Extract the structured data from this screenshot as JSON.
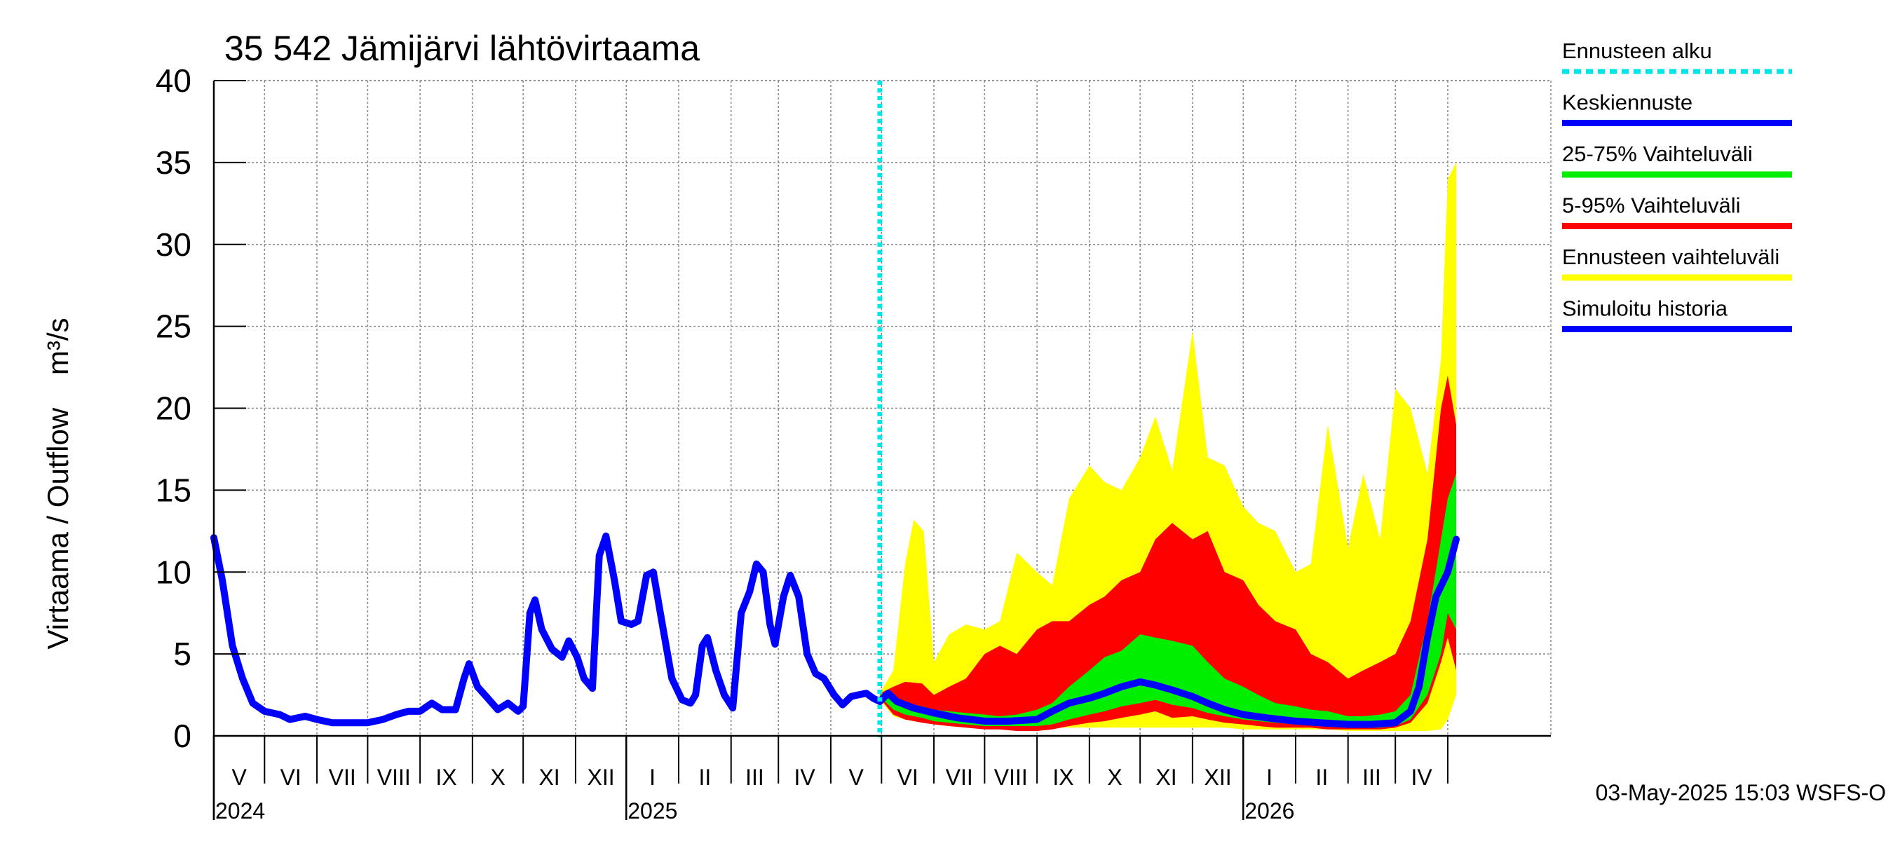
{
  "chart_data": {
    "type": "area",
    "title": "35 542 Jämijärvi lähtövirtaama",
    "ylabel": "Virtaama / Outflow    m³/s",
    "ylim": [
      0,
      40
    ],
    "yticks": [
      0,
      5,
      10,
      15,
      20,
      25,
      30,
      35,
      40
    ],
    "grid": true,
    "legend_position": "right",
    "x_range": [
      "2024-04-01",
      "2026-05-31"
    ],
    "months": [
      {
        "label": "V",
        "start": "2024-04-01"
      },
      {
        "label": "VI",
        "start": "2024-05-01"
      },
      {
        "label": "VII",
        "start": "2024-06-01"
      },
      {
        "label": "VIII",
        "start": "2024-07-01"
      },
      {
        "label": "IX",
        "start": "2024-08-01"
      },
      {
        "label": "X",
        "start": "2024-09-01"
      },
      {
        "label": "XI",
        "start": "2024-10-01"
      },
      {
        "label": "XII",
        "start": "2024-11-01"
      },
      {
        "label": "I",
        "start": "2024-12-01"
      },
      {
        "label": "II",
        "start": "2025-01-01"
      },
      {
        "label": "III",
        "start": "2025-02-01"
      },
      {
        "label": "IV",
        "start": "2025-03-01"
      },
      {
        "label": "V",
        "start": "2025-04-01"
      },
      {
        "label": "VI",
        "start": "2025-05-01"
      },
      {
        "label": "VII",
        "start": "2025-06-01"
      },
      {
        "label": "VIII",
        "start": "2025-07-01"
      },
      {
        "label": "IX",
        "start": "2025-08-01"
      },
      {
        "label": "X",
        "start": "2025-09-01"
      },
      {
        "label": "XI",
        "start": "2025-10-01"
      },
      {
        "label": "XII",
        "start": "2025-11-01"
      },
      {
        "label": "I",
        "start": "2025-12-01"
      },
      {
        "label": "II",
        "start": "2026-01-01"
      },
      {
        "label": "III",
        "start": "2026-02-01"
      },
      {
        "label": "IV",
        "start": "2026-03-01"
      },
      {
        "label": "",
        "start": "2026-04-01"
      }
    ],
    "years": [
      {
        "label": "2024",
        "at": "2024-04-01"
      },
      {
        "label": "2025",
        "at": "2024-12-01"
      },
      {
        "label": "2026",
        "at": "2025-12-01"
      }
    ],
    "forecast_start": "2025-04-30",
    "series": [
      {
        "name": "Simuloitu historia",
        "color": "#0000ff",
        "points": [
          [
            "2024-04-01",
            12.1
          ],
          [
            "2024-04-06",
            9.5
          ],
          [
            "2024-04-12",
            5.5
          ],
          [
            "2024-04-18",
            3.5
          ],
          [
            "2024-04-24",
            2.0
          ],
          [
            "2024-05-01",
            1.5
          ],
          [
            "2024-05-10",
            1.3
          ],
          [
            "2024-05-16",
            1.0
          ],
          [
            "2024-05-25",
            1.2
          ],
          [
            "2024-06-01",
            1.0
          ],
          [
            "2024-06-10",
            0.8
          ],
          [
            "2024-06-20",
            0.8
          ],
          [
            "2024-07-01",
            0.8
          ],
          [
            "2024-07-10",
            1.0
          ],
          [
            "2024-07-18",
            1.3
          ],
          [
            "2024-07-25",
            1.5
          ],
          [
            "2024-08-01",
            1.5
          ],
          [
            "2024-08-08",
            2.0
          ],
          [
            "2024-08-14",
            1.6
          ],
          [
            "2024-08-22",
            1.6
          ],
          [
            "2024-08-27",
            3.5
          ],
          [
            "2024-08-30",
            4.4
          ],
          [
            "2024-09-04",
            3.0
          ],
          [
            "2024-09-10",
            2.3
          ],
          [
            "2024-09-16",
            1.6
          ],
          [
            "2024-09-22",
            2.0
          ],
          [
            "2024-09-28",
            1.5
          ],
          [
            "2024-10-01",
            1.8
          ],
          [
            "2024-10-05",
            7.5
          ],
          [
            "2024-10-08",
            8.3
          ],
          [
            "2024-10-12",
            6.5
          ],
          [
            "2024-10-18",
            5.3
          ],
          [
            "2024-10-24",
            4.8
          ],
          [
            "2024-10-28",
            5.8
          ],
          [
            "2024-11-02",
            4.8
          ],
          [
            "2024-11-06",
            3.5
          ],
          [
            "2024-11-11",
            2.9
          ],
          [
            "2024-11-15",
            11.0
          ],
          [
            "2024-11-19",
            12.2
          ],
          [
            "2024-11-24",
            9.5
          ],
          [
            "2024-11-28",
            7.0
          ],
          [
            "2024-12-04",
            6.8
          ],
          [
            "2024-12-08",
            7.0
          ],
          [
            "2024-12-13",
            9.8
          ],
          [
            "2024-12-17",
            10.0
          ],
          [
            "2024-12-22",
            7.0
          ],
          [
            "2024-12-28",
            3.5
          ],
          [
            "2025-01-03",
            2.2
          ],
          [
            "2025-01-08",
            2.0
          ],
          [
            "2025-01-11",
            2.5
          ],
          [
            "2025-01-15",
            5.5
          ],
          [
            "2025-01-18",
            6.0
          ],
          [
            "2025-01-23",
            4.0
          ],
          [
            "2025-01-28",
            2.5
          ],
          [
            "2025-02-02",
            1.7
          ],
          [
            "2025-02-07",
            7.5
          ],
          [
            "2025-02-12",
            8.8
          ],
          [
            "2025-02-16",
            10.5
          ],
          [
            "2025-02-20",
            10.0
          ],
          [
            "2025-02-24",
            6.8
          ],
          [
            "2025-02-27",
            5.6
          ],
          [
            "2025-03-04",
            8.5
          ],
          [
            "2025-03-08",
            9.8
          ],
          [
            "2025-03-13",
            8.5
          ],
          [
            "2025-03-18",
            5.0
          ],
          [
            "2025-03-23",
            3.8
          ],
          [
            "2025-03-28",
            3.5
          ],
          [
            "2025-04-03",
            2.5
          ],
          [
            "2025-04-08",
            1.9
          ],
          [
            "2025-04-13",
            2.4
          ],
          [
            "2025-04-17",
            2.5
          ],
          [
            "2025-04-22",
            2.6
          ],
          [
            "2025-04-26",
            2.3
          ],
          [
            "2025-04-30",
            2.1
          ]
        ]
      },
      {
        "name": "Ennusteen vaihteluväli",
        "color": "#ffff00",
        "dates": [
          "2025-04-30",
          "2025-05-08",
          "2025-05-15",
          "2025-05-20",
          "2025-05-26",
          "2025-06-01",
          "2025-06-10",
          "2025-06-20",
          "2025-07-01",
          "2025-07-10",
          "2025-07-20",
          "2025-08-01",
          "2025-08-10",
          "2025-08-20",
          "2025-09-01",
          "2025-09-10",
          "2025-09-20",
          "2025-10-01",
          "2025-10-10",
          "2025-10-20",
          "2025-11-01",
          "2025-11-10",
          "2025-11-20",
          "2025-12-01",
          "2025-12-10",
          "2025-12-20",
          "2026-01-01",
          "2026-01-10",
          "2026-01-20",
          "2026-02-01",
          "2026-02-10",
          "2026-02-20",
          "2026-03-01",
          "2026-03-10",
          "2026-03-20",
          "2026-03-28",
          "2026-04-01",
          "2026-04-06"
        ],
        "low": [
          2.2,
          1.2,
          1.0,
          0.9,
          0.8,
          0.7,
          0.6,
          0.5,
          0.5,
          0.5,
          0.5,
          0.5,
          0.5,
          0.5,
          0.5,
          0.5,
          0.5,
          0.5,
          0.5,
          0.5,
          0.5,
          0.5,
          0.5,
          0.4,
          0.4,
          0.4,
          0.4,
          0.4,
          0.4,
          0.3,
          0.3,
          0.3,
          0.3,
          0.3,
          0.3,
          0.4,
          1.0,
          2.5
        ],
        "high": [
          2.6,
          4.0,
          10.5,
          13.2,
          12.5,
          4.5,
          6.2,
          6.8,
          6.5,
          7.0,
          11.2,
          10.0,
          9.2,
          14.5,
          16.5,
          15.5,
          15.0,
          17.0,
          19.5,
          16.2,
          24.7,
          17.0,
          16.5,
          14.0,
          13.0,
          12.5,
          10.0,
          10.5,
          19.0,
          11.5,
          16.0,
          12.0,
          21.2,
          20.0,
          16.0,
          23.0,
          34.0,
          35.0
        ]
      },
      {
        "name": "5-95% Vaihteluväli",
        "color": "#ff0000",
        "dates": [
          "2025-04-30",
          "2025-05-08",
          "2025-05-15",
          "2025-05-25",
          "2025-06-01",
          "2025-06-10",
          "2025-06-20",
          "2025-07-01",
          "2025-07-10",
          "2025-07-20",
          "2025-08-01",
          "2025-08-10",
          "2025-08-20",
          "2025-09-01",
          "2025-09-10",
          "2025-09-20",
          "2025-10-01",
          "2025-10-10",
          "2025-10-20",
          "2025-11-01",
          "2025-11-10",
          "2025-11-20",
          "2025-12-01",
          "2025-12-10",
          "2025-12-20",
          "2026-01-01",
          "2026-01-10",
          "2026-01-20",
          "2026-02-01",
          "2026-02-10",
          "2026-02-20",
          "2026-03-01",
          "2026-03-10",
          "2026-03-20",
          "2026-03-28",
          "2026-04-01",
          "2026-04-06"
        ],
        "low": [
          2.3,
          1.3,
          1.0,
          0.8,
          0.7,
          0.6,
          0.5,
          0.4,
          0.4,
          0.3,
          0.3,
          0.4,
          0.6,
          0.8,
          0.9,
          1.1,
          1.3,
          1.5,
          1.1,
          1.2,
          1.0,
          0.8,
          0.7,
          0.6,
          0.5,
          0.5,
          0.5,
          0.4,
          0.4,
          0.4,
          0.4,
          0.5,
          0.8,
          2.0,
          4.5,
          6.0,
          4.0
        ],
        "high": [
          2.6,
          3.0,
          3.3,
          3.2,
          2.5,
          3.0,
          3.5,
          5.0,
          5.5,
          5.0,
          6.5,
          7.0,
          7.0,
          8.0,
          8.5,
          9.5,
          10.0,
          12.0,
          13.0,
          12.0,
          12.5,
          10.0,
          9.5,
          8.0,
          7.0,
          6.5,
          5.0,
          4.5,
          3.5,
          4.0,
          4.5,
          5.0,
          7.0,
          12.0,
          20.0,
          22.0,
          19.0
        ]
      },
      {
        "name": "25-75% Vaihteluväli",
        "color": "#00ee00",
        "dates": [
          "2025-04-30",
          "2025-05-08",
          "2025-05-15",
          "2025-05-25",
          "2025-06-01",
          "2025-06-10",
          "2025-06-20",
          "2025-07-01",
          "2025-07-10",
          "2025-07-20",
          "2025-08-01",
          "2025-08-10",
          "2025-08-20",
          "2025-09-01",
          "2025-09-10",
          "2025-09-20",
          "2025-10-01",
          "2025-10-10",
          "2025-10-20",
          "2025-11-01",
          "2025-11-10",
          "2025-11-20",
          "2025-12-01",
          "2025-12-10",
          "2025-12-20",
          "2026-01-01",
          "2026-01-10",
          "2026-01-20",
          "2026-02-01",
          "2026-02-10",
          "2026-02-20",
          "2026-03-01",
          "2026-03-10",
          "2026-03-20",
          "2026-03-28",
          "2026-04-01",
          "2026-04-06"
        ],
        "low": [
          2.4,
          1.6,
          1.3,
          1.1,
          0.9,
          0.8,
          0.7,
          0.6,
          0.6,
          0.6,
          0.6,
          0.7,
          1.0,
          1.3,
          1.5,
          1.8,
          2.0,
          2.2,
          1.9,
          1.7,
          1.4,
          1.2,
          1.0,
          0.9,
          0.8,
          0.7,
          0.7,
          0.6,
          0.5,
          0.5,
          0.5,
          0.6,
          1.0,
          2.5,
          5.0,
          7.5,
          6.5
        ],
        "high": [
          2.6,
          2.2,
          2.0,
          1.8,
          1.6,
          1.5,
          1.4,
          1.3,
          1.2,
          1.3,
          1.6,
          2.0,
          3.0,
          4.0,
          4.8,
          5.2,
          6.2,
          6.0,
          5.8,
          5.5,
          4.5,
          3.5,
          3.0,
          2.5,
          2.0,
          1.8,
          1.6,
          1.5,
          1.2,
          1.2,
          1.3,
          1.5,
          2.5,
          7.0,
          12.0,
          14.5,
          16.0
        ]
      },
      {
        "name": "Keskiennuste",
        "color": "#0000ff",
        "points": [
          [
            "2025-04-30",
            2.1
          ],
          [
            "2025-05-05",
            2.6
          ],
          [
            "2025-05-10",
            2.1
          ],
          [
            "2025-05-20",
            1.7
          ],
          [
            "2025-06-01",
            1.4
          ],
          [
            "2025-06-15",
            1.1
          ],
          [
            "2025-07-01",
            0.9
          ],
          [
            "2025-07-15",
            0.9
          ],
          [
            "2025-08-01",
            1.0
          ],
          [
            "2025-08-10",
            1.5
          ],
          [
            "2025-08-20",
            2.0
          ],
          [
            "2025-09-01",
            2.3
          ],
          [
            "2025-09-10",
            2.6
          ],
          [
            "2025-09-20",
            3.0
          ],
          [
            "2025-10-01",
            3.3
          ],
          [
            "2025-10-10",
            3.1
          ],
          [
            "2025-10-20",
            2.8
          ],
          [
            "2025-11-01",
            2.4
          ],
          [
            "2025-11-10",
            2.0
          ],
          [
            "2025-11-20",
            1.6
          ],
          [
            "2025-12-01",
            1.3
          ],
          [
            "2025-12-15",
            1.1
          ],
          [
            "2026-01-01",
            0.9
          ],
          [
            "2026-01-15",
            0.8
          ],
          [
            "2026-02-01",
            0.7
          ],
          [
            "2026-02-15",
            0.7
          ],
          [
            "2026-03-01",
            0.8
          ],
          [
            "2026-03-10",
            1.5
          ],
          [
            "2026-03-15",
            3.0
          ],
          [
            "2026-03-20",
            6.0
          ],
          [
            "2026-03-25",
            8.5
          ],
          [
            "2026-04-01",
            10.0
          ],
          [
            "2026-04-06",
            12.0
          ]
        ]
      }
    ],
    "legend": [
      {
        "label": "Ennusteen alku",
        "color": "#00e5e5",
        "style": "dotted"
      },
      {
        "label": "Keskiennuste",
        "color": "#0000ff",
        "style": "solid"
      },
      {
        "label": "25-75% Vaihteluväli",
        "color": "#00ee00",
        "style": "solid"
      },
      {
        "label": "5-95% Vaihteluväli",
        "color": "#ff0000",
        "style": "solid"
      },
      {
        "label": "Ennusteen vaihteluväli",
        "color": "#ffff00",
        "style": "solid"
      },
      {
        "label": "Simuloitu historia",
        "color": "#0000ff",
        "style": "solid"
      }
    ],
    "footer": "03-May-2025 15:03 WSFS-O"
  }
}
